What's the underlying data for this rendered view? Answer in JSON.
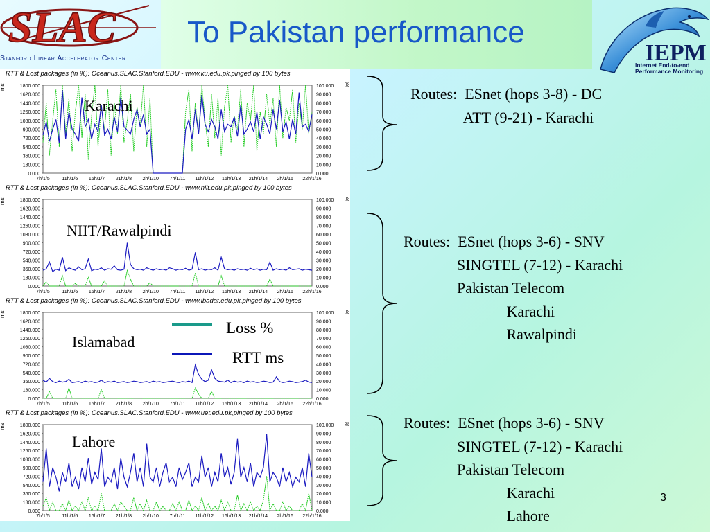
{
  "slide": {
    "title": "To Pakistan performance",
    "page_number": "3"
  },
  "logos": {
    "left": {
      "wordmark": "SLAC",
      "subtitle": "Stanford Linear Accelerator Center"
    },
    "right": {
      "wordmark": "IEPM",
      "subtitle_lines": [
        "Internet End-to-end",
        "Performance Monitoring"
      ]
    }
  },
  "legend": {
    "loss": {
      "label": "Loss %",
      "color": "#1a9a8a"
    },
    "rtt": {
      "label": "RTT ms",
      "color": "#0b16b8"
    }
  },
  "colors": {
    "rtt_line": "#1a1ac0",
    "loss_line": "#22cc22",
    "title_text": "#1858c8"
  },
  "chart_data": [
    {
      "type": "line",
      "title": "RTT & Lost packages (in %): Oceanus.SLAC.Stanford.EDU - www.ku.edu.pk,pinged  by 100 bytes",
      "city": "Karachi",
      "ylabel": "ms",
      "y2label": "%",
      "ylim": [
        0,
        1800
      ],
      "y2lim": [
        0,
        100
      ],
      "y_ticks": [
        "1800.000",
        "1620.000",
        "1440.000",
        "1260.000",
        "1080.000",
        "900.000",
        "720.000",
        "540.000",
        "360.000",
        "180.000",
        "0.000"
      ],
      "y2_ticks": [
        "100.000",
        "90.000",
        "80.000",
        "70.000",
        "60.000",
        "50.000",
        "40.000",
        "30.000",
        "20.000",
        "10.000",
        "0.000"
      ],
      "x_ticks": [
        "7h/1/5",
        "11h/1/6",
        "16h/1/7",
        "21h/1/8",
        "2h/1/10",
        "7h/1/11",
        "11h/1/12",
        "16h/1/13",
        "21h/1/14",
        "2h/1/16",
        "22h/1/16"
      ],
      "series": [
        {
          "name": "RTT ms",
          "values": [
            780,
            1050,
            650,
            900,
            1100,
            620,
            1700,
            700,
            1250,
            900,
            800,
            650,
            1550,
            950,
            1100,
            700,
            1000,
            850,
            1400,
            780,
            900,
            700,
            1150,
            850,
            1550,
            950,
            880,
            800,
            1100,
            1300,
            950,
            1200,
            800,
            900,
            0,
            0,
            0,
            0,
            0,
            0,
            0,
            0,
            0,
            0,
            900,
            1100,
            700,
            1300,
            800,
            1600,
            1000,
            850,
            1100,
            950,
            700,
            1300,
            850,
            1000,
            950,
            1150,
            750,
            1400,
            800,
            900,
            1050,
            850,
            1250,
            700,
            1150,
            1000,
            800,
            1300,
            900,
            1500,
            850,
            1050,
            700,
            1100,
            800,
            1650,
            950,
            1000,
            850,
            1200
          ]
        },
        {
          "name": "Loss %",
          "values": [
            35,
            80,
            20,
            60,
            95,
            30,
            100,
            45,
            85,
            25,
            70,
            100,
            40,
            90,
            15,
            65,
            100,
            30,
            75,
            50,
            95,
            20,
            80,
            45,
            100,
            35,
            60,
            90,
            25,
            75,
            55,
            100,
            30,
            85,
            0,
            0,
            0,
            0,
            0,
            0,
            0,
            0,
            0,
            0,
            70,
            95,
            25,
            80,
            45,
            100,
            60,
            30,
            90,
            40,
            85,
            20,
            75,
            100,
            35,
            65,
            50,
            95,
            30,
            80,
            60,
            100,
            25,
            70,
            45,
            90,
            55,
            85,
            30,
            100,
            40,
            75,
            60,
            95,
            35,
            80,
            50,
            100,
            45,
            70
          ]
        }
      ]
    },
    {
      "type": "line",
      "title": "RTT & Lost packages (in %): Oceanus.SLAC.Stanford.EDU - www.niit.edu.pk,pinged  by 100 bytes",
      "city": "NIIT/Rawalpindi",
      "ylabel": "ms",
      "y2label": "%",
      "ylim": [
        0,
        1800
      ],
      "y2lim": [
        0,
        100
      ],
      "y_ticks": [
        "1800.000",
        "1620.000",
        "1440.000",
        "1260.000",
        "1080.000",
        "900.000",
        "720.000",
        "540.000",
        "360.000",
        "180.000",
        "0.000"
      ],
      "y2_ticks": [
        "100.000",
        "90.000",
        "80.000",
        "70.000",
        "60.000",
        "50.000",
        "40.000",
        "30.000",
        "20.000",
        "10.000",
        "0.000"
      ],
      "x_ticks": [
        "7h/1/5",
        "11h/1/6",
        "16h/1/7",
        "21h/1/8",
        "2h/1/10",
        "7h/1/11",
        "11h/1/12",
        "16h/1/13",
        "21h/1/14",
        "2h/1/16",
        "22h/1/16"
      ],
      "series": [
        {
          "name": "RTT ms",
          "values": [
            330,
            360,
            500,
            300,
            350,
            330,
            600,
            320,
            380,
            350,
            330,
            400,
            340,
            360,
            560,
            320,
            350,
            340,
            380,
            330,
            360,
            350,
            420,
            340,
            330,
            350,
            900,
            450,
            360,
            340,
            350,
            330,
            380,
            350,
            330,
            360,
            340,
            350,
            330,
            380,
            360,
            330,
            350,
            340,
            370,
            330,
            350,
            700,
            340,
            360,
            330,
            350,
            340,
            380,
            330,
            600,
            360,
            340,
            350,
            330,
            360,
            340,
            350,
            330,
            370,
            340,
            360,
            330,
            350,
            340,
            500,
            330,
            360,
            340,
            350,
            330,
            380,
            340,
            350,
            360,
            330,
            350,
            340,
            330
          ]
        },
        {
          "name": "Loss %",
          "values": [
            0,
            5,
            0,
            0,
            0,
            0,
            12,
            0,
            0,
            0,
            3,
            0,
            0,
            0,
            10,
            0,
            0,
            0,
            0,
            6,
            0,
            0,
            0,
            0,
            0,
            0,
            18,
            8,
            0,
            0,
            0,
            0,
            0,
            4,
            0,
            0,
            0,
            0,
            0,
            0,
            0,
            0,
            0,
            0,
            0,
            0,
            0,
            15,
            0,
            0,
            0,
            0,
            0,
            0,
            0,
            12,
            0,
            0,
            0,
            0,
            0,
            0,
            0,
            0,
            0,
            0,
            0,
            0,
            0,
            0,
            8,
            0,
            0,
            0,
            0,
            0,
            0,
            0,
            0,
            0,
            0,
            0,
            0,
            0
          ]
        }
      ]
    },
    {
      "type": "line",
      "title": "RTT & Lost packages (in %): Oceanus.SLAC.Stanford.EDU - www.ibadat.edu.pk,pinged  by 100 bytes",
      "city": "Islamabad",
      "ylabel": "ms",
      "y2label": "%",
      "ylim": [
        0,
        1800
      ],
      "y2lim": [
        0,
        100
      ],
      "y_ticks": [
        "1800.000",
        "1620.000",
        "1440.000",
        "1260.000",
        "1080.000",
        "900.000",
        "720.000",
        "540.000",
        "360.000",
        "180.000",
        "0.000"
      ],
      "y2_ticks": [
        "100.000",
        "90.000",
        "80.000",
        "70.000",
        "60.000",
        "50.000",
        "40.000",
        "30.000",
        "20.000",
        "10.000",
        "0.000"
      ],
      "x_ticks": [
        "7h/1/5",
        "11h/1/6",
        "16h/1/7",
        "21h/1/8",
        "2h/1/10",
        "7h/1/11",
        "11h/1/12",
        "16h/1/13",
        "21h/1/14",
        "2h/1/16",
        "22h/1/16"
      ],
      "series": [
        {
          "name": "RTT ms",
          "values": [
            380,
            340,
            420,
            350,
            330,
            360,
            340,
            350,
            400,
            330,
            340,
            350,
            330,
            360,
            340,
            350,
            330,
            340,
            380,
            330,
            350,
            340,
            360,
            330,
            340,
            350,
            330,
            340,
            360,
            350,
            330,
            340,
            350,
            330,
            360,
            340,
            350,
            330,
            340,
            350,
            360,
            340,
            330,
            350,
            340,
            360,
            330,
            700,
            500,
            400,
            350,
            380,
            600,
            420,
            360,
            350,
            340,
            380,
            330,
            360,
            340,
            350,
            330,
            360,
            340,
            350,
            330,
            340,
            360,
            350,
            330,
            340,
            450,
            350,
            330,
            340,
            360,
            350,
            330,
            340,
            350,
            380,
            340,
            330
          ]
        },
        {
          "name": "Loss %",
          "values": [
            0,
            0,
            8,
            0,
            0,
            0,
            0,
            0,
            12,
            0,
            0,
            0,
            0,
            0,
            0,
            0,
            0,
            0,
            10,
            0,
            0,
            0,
            0,
            0,
            0,
            0,
            0,
            0,
            0,
            0,
            0,
            0,
            0,
            0,
            0,
            0,
            0,
            0,
            0,
            0,
            0,
            0,
            0,
            0,
            0,
            0,
            0,
            12,
            5,
            0,
            0,
            0,
            8,
            0,
            0,
            0,
            0,
            0,
            0,
            0,
            0,
            0,
            0,
            0,
            0,
            0,
            0,
            0,
            0,
            0,
            0,
            0,
            0,
            0,
            0,
            0,
            0,
            0,
            0,
            0,
            0,
            0,
            0,
            0
          ]
        }
      ]
    },
    {
      "type": "line",
      "title": "RTT & Lost packages (in %): Oceanus.SLAC.Stanford.EDU - www.uet.edu.pk,pinged  by 100 bytes",
      "city": "Lahore",
      "ylabel": "ms",
      "y2label": "%",
      "ylim": [
        0,
        1800
      ],
      "y2lim": [
        0,
        100
      ],
      "y_ticks": [
        "1800.000",
        "1620.000",
        "1440.000",
        "1260.000",
        "1080.000",
        "900.000",
        "720.000",
        "540.000",
        "360.000",
        "180.000",
        "0.000"
      ],
      "y2_ticks": [
        "100.000",
        "90.000",
        "80.000",
        "70.000",
        "60.000",
        "50.000",
        "40.000",
        "30.000",
        "20.000",
        "10.000",
        "0.000"
      ],
      "x_ticks": [
        "7h/1/5",
        "11h/1/6",
        "16h/1/7",
        "21h/1/8",
        "2h/1/10",
        "7h/1/11",
        "11h/1/12",
        "16h/1/13",
        "21h/1/14",
        "2h/1/16",
        "22h/1/16"
      ],
      "series": [
        {
          "name": "RTT ms",
          "values": [
            600,
            1300,
            500,
            900,
            700,
            400,
            800,
            600,
            1000,
            500,
            700,
            450,
            900,
            600,
            1100,
            550,
            800,
            650,
            1300,
            500,
            700,
            600,
            900,
            450,
            1100,
            700,
            500,
            800,
            1200,
            600,
            900,
            500,
            1400,
            700,
            600,
            900,
            500,
            800,
            1000,
            600,
            700,
            500,
            900,
            650,
            800,
            1000,
            500,
            700,
            600,
            1150,
            700,
            900,
            500,
            800,
            600,
            1200,
            700,
            900,
            550,
            800,
            1500,
            700,
            900,
            600,
            1000,
            500,
            800,
            700,
            900,
            1600,
            600,
            800,
            700,
            500,
            900,
            600,
            800,
            500,
            700,
            600,
            900,
            500,
            1200,
            700
          ]
        },
        {
          "name": "Loss %",
          "values": [
            5,
            15,
            0,
            10,
            0,
            0,
            8,
            0,
            12,
            0,
            5,
            0,
            10,
            0,
            15,
            0,
            5,
            0,
            20,
            0,
            0,
            0,
            8,
            0,
            10,
            5,
            0,
            0,
            15,
            0,
            8,
            0,
            12,
            0,
            0,
            10,
            0,
            5,
            0,
            0,
            8,
            0,
            10,
            0,
            0,
            12,
            0,
            5,
            0,
            15,
            0,
            8,
            0,
            5,
            0,
            12,
            0,
            10,
            0,
            0,
            18,
            0,
            8,
            0,
            10,
            0,
            5,
            0,
            12,
            40,
            0,
            8,
            0,
            0,
            10,
            0,
            5,
            0,
            0,
            0,
            8,
            0,
            20,
            0
          ]
        }
      ]
    }
  ],
  "routes": [
    {
      "lines": [
        "Routes:  ESnet (hops 3-8) - DC",
        "              ATT (9-21) - Karachi"
      ]
    },
    {
      "lines": [
        "Routes:  ESnet (hops 3-6) - SNV",
        "              SINGTEL (7-12) - Karachi",
        "              Pakistan Telecom",
        "                           Karachi",
        "                           Rawalpindi"
      ]
    },
    {
      "lines": [
        "Routes:  ESnet (hops 3-6) - SNV",
        "              SINGTEL (7-12) - Karachi",
        "              Pakistan Telecom",
        "                           Karachi",
        "                           Lahore"
      ]
    }
  ]
}
